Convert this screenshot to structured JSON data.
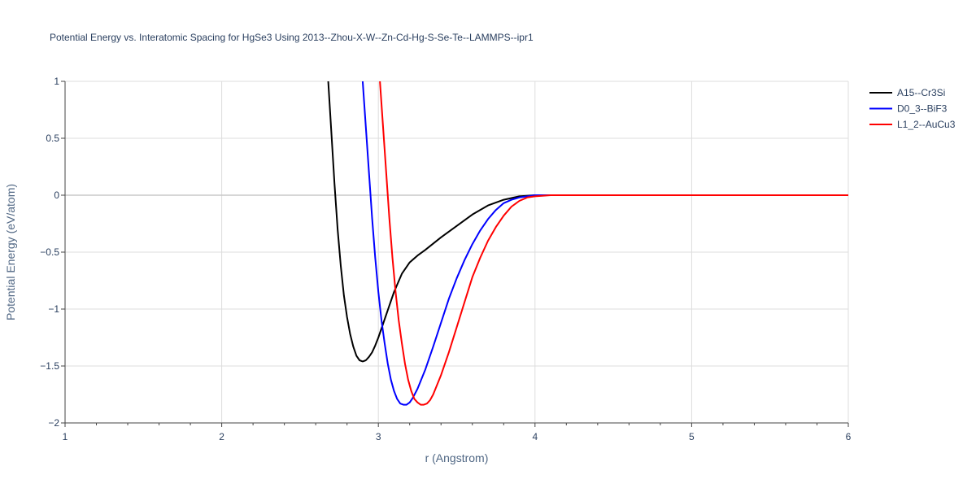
{
  "chart_data": {
    "type": "line",
    "title": "Potential Energy vs. Interatomic Spacing for HgSe3 Using 2013--Zhou-X-W--Zn-Cd-Hg-S-Se-Te--LAMMPS--ipr1",
    "xlabel": "r (Angstrom)",
    "ylabel": "Potential Energy (eV/atom)",
    "xlim": [
      1,
      6
    ],
    "ylim": [
      -2,
      1
    ],
    "x_ticks": [
      1,
      2,
      3,
      4,
      5,
      6
    ],
    "y_ticks": [
      -2,
      -1.5,
      -1,
      -0.5,
      0,
      0.5,
      1
    ],
    "x_tick_labels": [
      "1",
      "2",
      "3",
      "4",
      "5",
      "6"
    ],
    "y_tick_labels": [
      "−2",
      "−1.5",
      "−1",
      "−0.5",
      "0",
      "0.5",
      "1"
    ],
    "grid": true,
    "legend_position": "top-right",
    "series": [
      {
        "name": "A15--Cr3Si",
        "color": "#000000",
        "x": [
          2.68,
          2.7,
          2.72,
          2.74,
          2.76,
          2.78,
          2.8,
          2.82,
          2.84,
          2.86,
          2.88,
          2.9,
          2.92,
          2.94,
          2.96,
          2.98,
          3.0,
          3.05,
          3.1,
          3.15,
          3.2,
          3.25,
          3.3,
          3.4,
          3.5,
          3.6,
          3.7,
          3.8,
          3.9,
          4.0,
          4.1,
          4.5,
          5.0,
          5.5,
          6.0
        ],
        "y": [
          1.0,
          0.55,
          0.1,
          -0.3,
          -0.62,
          -0.88,
          -1.07,
          -1.22,
          -1.33,
          -1.41,
          -1.45,
          -1.46,
          -1.45,
          -1.42,
          -1.38,
          -1.32,
          -1.25,
          -1.05,
          -0.85,
          -0.69,
          -0.59,
          -0.53,
          -0.48,
          -0.37,
          -0.27,
          -0.17,
          -0.09,
          -0.04,
          -0.01,
          0.0,
          0.0,
          0.0,
          0.0,
          0.0,
          0.0
        ]
      },
      {
        "name": "D0_3--BiF3",
        "color": "#0000ff",
        "x": [
          2.9,
          2.92,
          2.94,
          2.96,
          2.98,
          3.0,
          3.02,
          3.04,
          3.06,
          3.08,
          3.1,
          3.12,
          3.14,
          3.16,
          3.18,
          3.2,
          3.22,
          3.25,
          3.3,
          3.35,
          3.4,
          3.45,
          3.5,
          3.55,
          3.6,
          3.65,
          3.7,
          3.75,
          3.8,
          3.85,
          3.9,
          3.95,
          4.0,
          4.1,
          4.5,
          5.0,
          5.5,
          6.0
        ],
        "y": [
          1.0,
          0.6,
          0.2,
          -0.2,
          -0.55,
          -0.85,
          -1.1,
          -1.3,
          -1.48,
          -1.62,
          -1.72,
          -1.79,
          -1.83,
          -1.84,
          -1.84,
          -1.82,
          -1.78,
          -1.7,
          -1.53,
          -1.33,
          -1.12,
          -0.91,
          -0.73,
          -0.57,
          -0.43,
          -0.31,
          -0.21,
          -0.13,
          -0.07,
          -0.04,
          -0.02,
          -0.01,
          0.0,
          0.0,
          0.0,
          0.0,
          0.0,
          0.0
        ]
      },
      {
        "name": "L1_2--AuCu3",
        "color": "#ff0000",
        "x": [
          3.01,
          3.03,
          3.05,
          3.07,
          3.09,
          3.11,
          3.13,
          3.15,
          3.17,
          3.19,
          3.21,
          3.23,
          3.25,
          3.27,
          3.29,
          3.31,
          3.33,
          3.35,
          3.4,
          3.45,
          3.5,
          3.55,
          3.6,
          3.65,
          3.7,
          3.75,
          3.8,
          3.85,
          3.9,
          3.95,
          4.0,
          4.1,
          4.5,
          5.0,
          5.5,
          6.0
        ],
        "y": [
          1.0,
          0.6,
          0.2,
          -0.2,
          -0.55,
          -0.85,
          -1.1,
          -1.3,
          -1.48,
          -1.62,
          -1.72,
          -1.79,
          -1.82,
          -1.84,
          -1.84,
          -1.83,
          -1.8,
          -1.75,
          -1.58,
          -1.38,
          -1.16,
          -0.94,
          -0.72,
          -0.55,
          -0.4,
          -0.28,
          -0.18,
          -0.1,
          -0.05,
          -0.02,
          -0.01,
          0.0,
          0.0,
          0.0,
          0.0,
          0.0
        ]
      }
    ]
  }
}
